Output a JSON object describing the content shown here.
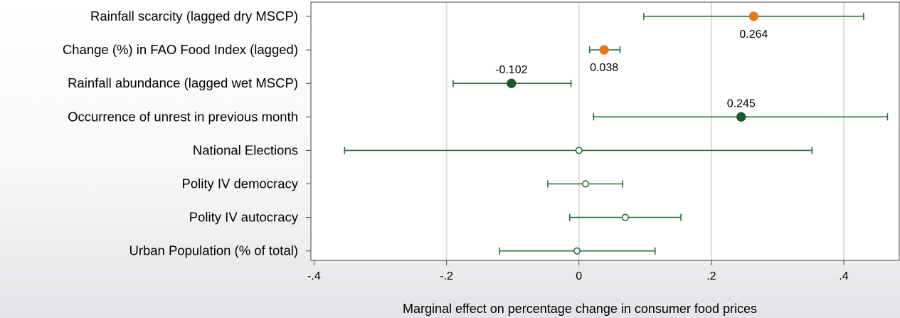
{
  "chart_data": {
    "type": "scatter",
    "subtype": "coefficient-plot-with-confidence-intervals",
    "xlabel": "Marginal effect on percentage change in consumer food prices",
    "xlim": [
      -0.4,
      0.47
    ],
    "xticks": [
      {
        "value": -0.4,
        "label": "-.4"
      },
      {
        "value": -0.2,
        "label": "-.2"
      },
      {
        "value": 0,
        "label": "0"
      },
      {
        "value": 0.2,
        "label": ".2"
      },
      {
        "value": 0.4,
        "label": ".4"
      }
    ],
    "grid": true,
    "colors": {
      "ci_line": "#2a6b3a",
      "significant_dry": "#e07b22",
      "significant_wet": "#1c5a2c",
      "not_significant_fill": "#ffffff",
      "gridline": "#dcdcdc"
    },
    "rows": [
      {
        "label": "Rainfall scarcity (lagged dry MSCP)",
        "estimate": 0.264,
        "ci": [
          0.098,
          0.43
        ],
        "marker": "significant_dry",
        "value_label": "0.264",
        "value_label_pos": "below"
      },
      {
        "label": "Change (%) in FAO Food Index (lagged)",
        "estimate": 0.038,
        "ci": [
          0.016,
          0.062
        ],
        "marker": "significant_dry",
        "value_label": "0.038",
        "value_label_pos": "below"
      },
      {
        "label": "Rainfall abundance (lagged wet MSCP)",
        "estimate": -0.102,
        "ci": [
          -0.19,
          -0.012
        ],
        "marker": "significant_wet",
        "value_label": "-0.102",
        "value_label_pos": "above"
      },
      {
        "label": "Occurrence of unrest in previous month",
        "estimate": 0.245,
        "ci": [
          0.022,
          0.466
        ],
        "marker": "significant_wet",
        "value_label": "0.245",
        "value_label_pos": "above"
      },
      {
        "label": "National Elections",
        "estimate": 0.0,
        "ci": [
          -0.354,
          0.352
        ],
        "marker": "not_significant",
        "value_label": "",
        "value_label_pos": ""
      },
      {
        "label": "Polity IV democracy",
        "estimate": 0.01,
        "ci": [
          -0.047,
          0.066
        ],
        "marker": "not_significant",
        "value_label": "",
        "value_label_pos": ""
      },
      {
        "label": "Polity IV autocracy",
        "estimate": 0.07,
        "ci": [
          -0.014,
          0.154
        ],
        "marker": "not_significant",
        "value_label": "",
        "value_label_pos": ""
      },
      {
        "label": "Urban Population (% of total)",
        "estimate": -0.003,
        "ci": [
          -0.12,
          0.115
        ],
        "marker": "not_significant",
        "value_label": "",
        "value_label_pos": ""
      }
    ]
  }
}
